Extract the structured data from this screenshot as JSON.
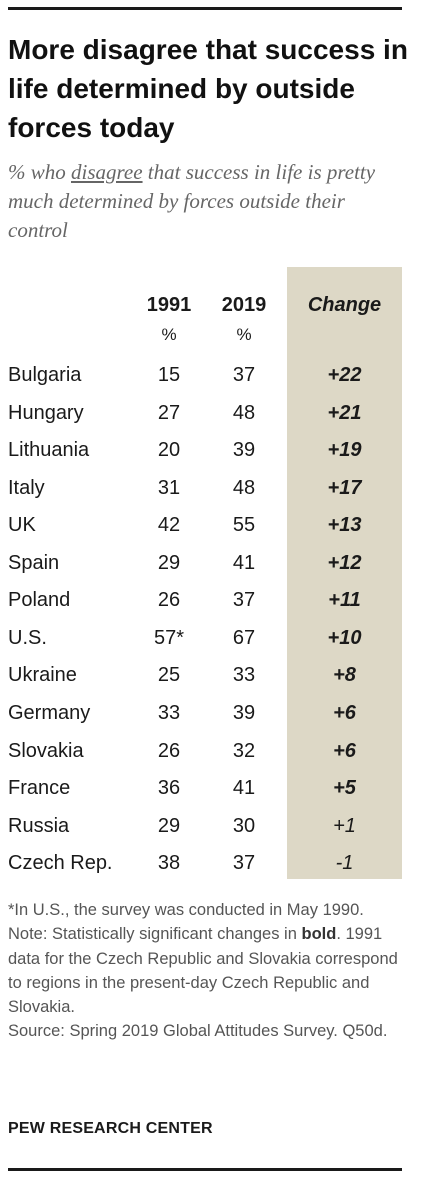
{
  "header": {
    "title": "More disagree that success in life determined by outside forces today",
    "subtitle_pre": "% who ",
    "subtitle_underlined": "disagree",
    "subtitle_post": " that success in life is pretty much determined by forces outside their control"
  },
  "chart_data": {
    "type": "table",
    "columns": [
      "1991",
      "2019",
      "Change"
    ],
    "units": [
      "%",
      "%"
    ],
    "rows": [
      {
        "country": "Bulgaria",
        "v1991": "15",
        "v2019": "37",
        "change": "+22",
        "significant": true
      },
      {
        "country": "Hungary",
        "v1991": "27",
        "v2019": "48",
        "change": "+21",
        "significant": true
      },
      {
        "country": "Lithuania",
        "v1991": "20",
        "v2019": "39",
        "change": "+19",
        "significant": true
      },
      {
        "country": "Italy",
        "v1991": "31",
        "v2019": "48",
        "change": "+17",
        "significant": true
      },
      {
        "country": "UK",
        "v1991": "42",
        "v2019": "55",
        "change": "+13",
        "significant": true
      },
      {
        "country": "Spain",
        "v1991": "29",
        "v2019": "41",
        "change": "+12",
        "significant": true
      },
      {
        "country": "Poland",
        "v1991": "26",
        "v2019": "37",
        "change": "+11",
        "significant": true
      },
      {
        "country": "U.S.",
        "v1991": "57*",
        "v2019": "67",
        "change": "+10",
        "significant": true
      },
      {
        "country": "Ukraine",
        "v1991": "25",
        "v2019": "33",
        "change": "+8",
        "significant": true
      },
      {
        "country": "Germany",
        "v1991": "33",
        "v2019": "39",
        "change": "+6",
        "significant": true
      },
      {
        "country": "Slovakia",
        "v1991": "26",
        "v2019": "32",
        "change": "+6",
        "significant": true
      },
      {
        "country": "France",
        "v1991": "36",
        "v2019": "41",
        "change": "+5",
        "significant": true
      },
      {
        "country": "Russia",
        "v1991": "29",
        "v2019": "30",
        "change": "+1",
        "significant": false
      },
      {
        "country": "Czech Rep.",
        "v1991": "38",
        "v2019": "37",
        "change": "-1",
        "significant": false
      }
    ]
  },
  "notes": {
    "footnote": "*In U.S., the survey was conducted in May 1990.",
    "note_pre": "Note: Statistically significant changes in ",
    "note_bold": "bold",
    "note_post": ". 1991 data for the Czech Republic and Slovakia correspond to regions in the present-day Czech Republic and Slovakia.",
    "source": "Source: Spring 2019 Global Attitudes Survey. Q50d."
  },
  "branding": "PEW RESEARCH CENTER",
  "colors": {
    "change_column_bg": "#ddd8c6",
    "text": "#1a1a1a",
    "subtitle": "#666666",
    "notes": "#555555"
  }
}
